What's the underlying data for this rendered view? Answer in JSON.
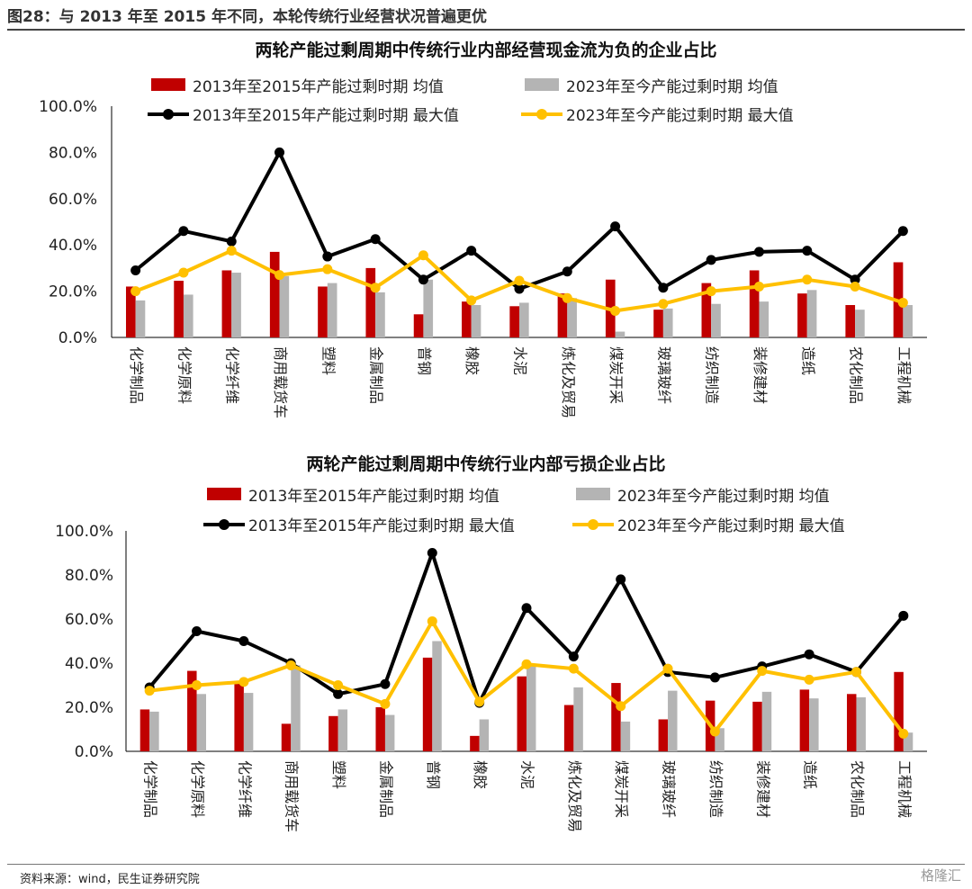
{
  "figure_title": "图28：与 2013 年至 2015 年不同，本轮传统行业经营状况普遍更优",
  "source": "资料来源：wind，民生证券研究院",
  "watermark": "格隆汇",
  "colors": {
    "series_2013_avg": "#c00000",
    "series_2023_avg": "#b4b4b4",
    "series_2013_max": "#000000",
    "series_2023_max": "#ffc000"
  },
  "chart_data": [
    {
      "type": "bar",
      "title": "两轮产能过剩周期中传统行业内部经营现金流为负的企业占比",
      "categories": [
        "化学制品",
        "化学原料",
        "化学纤维",
        "商用载货车",
        "塑料",
        "金属制品",
        "普钢",
        "橡胶",
        "水泥",
        "炼化及贸易",
        "煤炭开采",
        "玻璃玻纤",
        "纺织制造",
        "装修建材",
        "造纸",
        "农化制品",
        "工程机械"
      ],
      "ylim": [
        0,
        100
      ],
      "yticks": [
        "0.0%",
        "20.0%",
        "40.0%",
        "60.0%",
        "80.0%",
        "100.0%"
      ],
      "legend_position": "top",
      "series": [
        {
          "name": "2013年至2015年产能过剩时期 均值",
          "kind": "bar",
          "values": [
            22,
            24.5,
            29,
            37,
            22,
            30,
            10,
            15.5,
            13.5,
            19,
            25,
            12,
            23.5,
            29,
            19,
            14,
            32.5
          ]
        },
        {
          "name": "2023年至今产能过剩时期 均值",
          "kind": "bar",
          "values": [
            16,
            18.5,
            28,
            26.5,
            23.5,
            19.5,
            25,
            14,
            15,
            17,
            2.5,
            12.5,
            14.5,
            15.5,
            20.5,
            12,
            14
          ]
        },
        {
          "name": "2013年至2015年产能过剩时期 最大值",
          "kind": "line",
          "values": [
            29,
            46,
            41.5,
            80,
            35,
            42.5,
            25,
            37.5,
            21,
            28.5,
            48,
            21.5,
            33.5,
            37,
            37.5,
            25,
            46
          ]
        },
        {
          "name": "2023年至今产能过剩时期 最大值",
          "kind": "line",
          "values": [
            20,
            28,
            37.5,
            27,
            29.5,
            21.5,
            35.5,
            16,
            24.5,
            17,
            11.5,
            14.5,
            20,
            22,
            25,
            22,
            15
          ]
        }
      ]
    },
    {
      "type": "bar",
      "title": "两轮产能过剩周期中传统行业内部亏损企业占比",
      "categories": [
        "化学制品",
        "化学原料",
        "化学纤维",
        "商用载货车",
        "塑料",
        "金属制品",
        "普钢",
        "橡胶",
        "水泥",
        "炼化及贸易",
        "煤炭开采",
        "玻璃玻纤",
        "纺织制造",
        "装修建材",
        "造纸",
        "农化制品",
        "工程机械"
      ],
      "ylim": [
        0,
        100
      ],
      "yticks": [
        "0.0%",
        "20.0%",
        "40.0%",
        "60.0%",
        "80.0%",
        "100.0%"
      ],
      "legend_position": "top",
      "series": [
        {
          "name": "2013年至2015年产能过剩时期 均值",
          "kind": "bar",
          "values": [
            19,
            36.5,
            31,
            12.5,
            16,
            20,
            42.5,
            7,
            34,
            21,
            31,
            14.5,
            23,
            22.5,
            28,
            26,
            36
          ]
        },
        {
          "name": "2023年至今产能过剩时期 均值",
          "kind": "bar",
          "values": [
            18,
            26,
            26.5,
            39,
            19,
            16.5,
            50,
            14.5,
            39,
            29,
            13.5,
            27.5,
            10.5,
            27,
            24,
            24.5,
            8.5
          ]
        },
        {
          "name": "2013年至2015年产能过剩时期 最大值",
          "kind": "line",
          "values": [
            29,
            54.5,
            50,
            40,
            26,
            30.5,
            90,
            22,
            65,
            43,
            78,
            36,
            33.5,
            38.5,
            44,
            36,
            61.5
          ]
        },
        {
          "name": "2023年至今产能过剩时期 最大值",
          "kind": "line",
          "values": [
            27.5,
            30,
            31.5,
            39,
            30,
            21.5,
            59,
            22.5,
            39.5,
            37.5,
            20.5,
            37.5,
            9,
            36.5,
            32.5,
            36,
            8
          ]
        }
      ]
    }
  ]
}
